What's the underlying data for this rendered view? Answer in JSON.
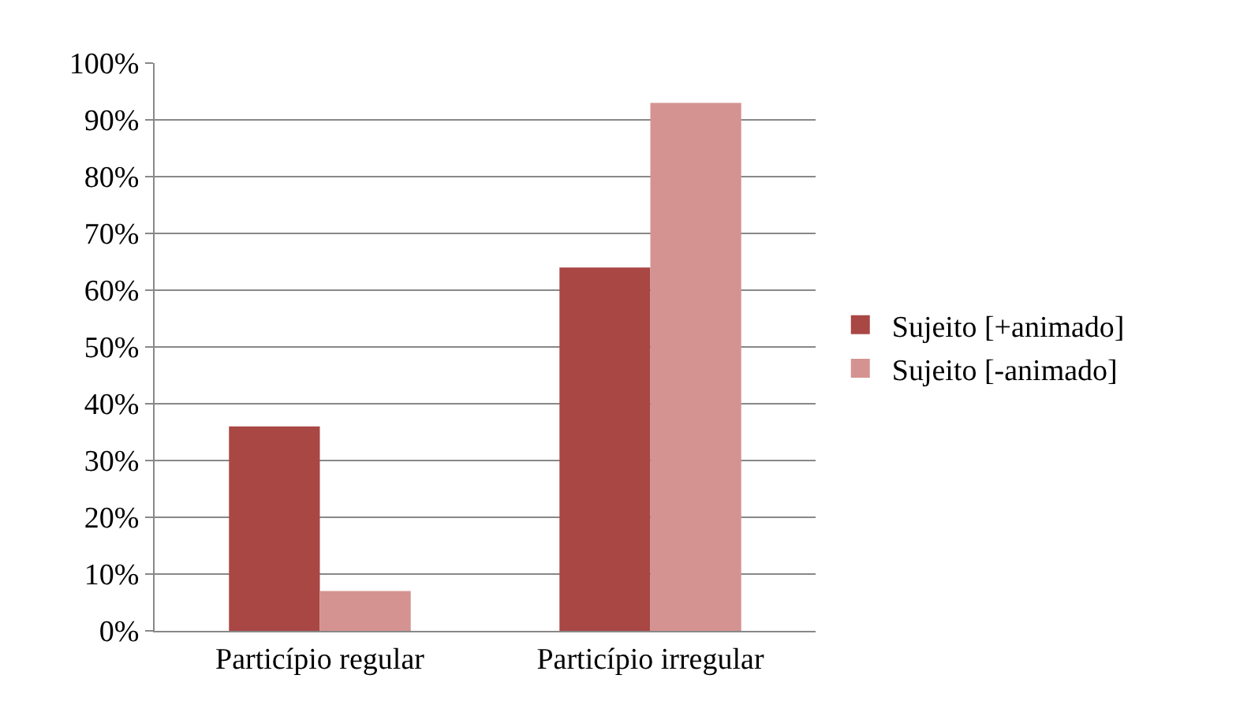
{
  "chart_data": {
    "type": "bar",
    "categories": [
      "Particípio regular",
      "Particípio irregular"
    ],
    "series": [
      {
        "name": "Sujeito [+animado]",
        "color": "#a94745",
        "values": [
          36,
          64
        ]
      },
      {
        "name": "Sujeito [-animado]",
        "color": "#d49391",
        "values": [
          7,
          93
        ]
      }
    ],
    "ylim": [
      0,
      100
    ],
    "yticks": [
      {
        "value": 0,
        "label": "0%"
      },
      {
        "value": 10,
        "label": "10%"
      },
      {
        "value": 20,
        "label": "20%"
      },
      {
        "value": 30,
        "label": "30%"
      },
      {
        "value": 40,
        "label": "40%"
      },
      {
        "value": 50,
        "label": "50%"
      },
      {
        "value": 60,
        "label": "60%"
      },
      {
        "value": 70,
        "label": "70%"
      },
      {
        "value": 80,
        "label": "80%"
      },
      {
        "value": 90,
        "label": "90%"
      },
      {
        "value": 100,
        "label": "100%"
      }
    ],
    "grid": "y",
    "legend": "right"
  }
}
